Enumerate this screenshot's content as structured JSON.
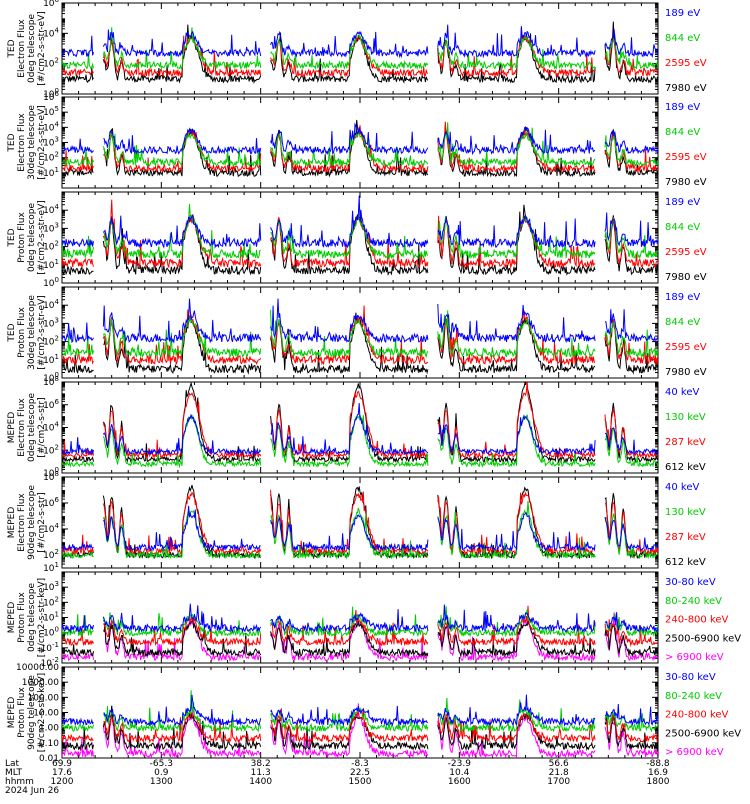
{
  "chart_data": [
    {
      "type": "line",
      "log_y": true,
      "ylim": [
        1,
        1000000
      ],
      "ylabel_lines": [
        "TED",
        "Electron Flux",
        "0deg telescope",
        "[#/cm2-s-str-eV]"
      ],
      "y_ticks": [
        {
          "exp": 0
        },
        {
          "exp": 2
        },
        {
          "exp": 4
        },
        {
          "exp": 6
        }
      ],
      "series": [
        {
          "name": "7980 eV",
          "color": "#000000",
          "baseline": 1.0
        },
        {
          "name": "2595 eV",
          "color": "#ff0000",
          "baseline": 1.4
        },
        {
          "name": "844 eV",
          "color": "#00cc00",
          "baseline": 1.9
        },
        {
          "name": "189 eV",
          "color": "#0000ff",
          "baseline": 2.7
        }
      ],
      "peaks": [
        1.3,
        2.7,
        2.6,
        0.6
      ]
    },
    {
      "type": "line",
      "log_y": true,
      "ylim": [
        1,
        1000000
      ],
      "ylabel_lines": [
        "TED",
        "Electron Flux",
        "30deg telescope",
        "[#/cm2-s-str-eV]"
      ],
      "y_ticks": [
        {
          "exp": 1
        },
        {
          "exp": 2
        },
        {
          "exp": 3
        },
        {
          "exp": 4
        },
        {
          "exp": 5
        },
        {
          "exp": 6
        }
      ],
      "series": [
        {
          "name": "7980 eV",
          "color": "#000000",
          "baseline": 1.0
        },
        {
          "name": "2595 eV",
          "color": "#ff0000",
          "baseline": 1.3
        },
        {
          "name": "844 eV",
          "color": "#00cc00",
          "baseline": 1.7
        },
        {
          "name": "189 eV",
          "color": "#0000ff",
          "baseline": 2.5
        }
      ],
      "peaks": [
        1.4,
        2.8,
        2.7,
        0.8
      ]
    },
    {
      "type": "line",
      "log_y": true,
      "ylim": [
        1,
        100000
      ],
      "ylabel_lines": [
        "TED",
        "Proton Flux",
        "0deg telescope",
        "[#/cm2-s-str-eV]"
      ],
      "y_ticks": [
        {
          "exp": 0
        },
        {
          "exp": 1
        },
        {
          "exp": 2
        },
        {
          "exp": 3
        },
        {
          "exp": 4
        }
      ],
      "series": [
        {
          "name": "7980 eV",
          "color": "#000000",
          "baseline": 0.7
        },
        {
          "name": "2595 eV",
          "color": "#ff0000",
          "baseline": 1.1
        },
        {
          "name": "844 eV",
          "color": "#00cc00",
          "baseline": 1.6
        },
        {
          "name": "189 eV",
          "color": "#0000ff",
          "baseline": 2.2
        }
      ],
      "peaks": [
        1.6,
        2.9,
        2.8,
        0.8
      ]
    },
    {
      "type": "line",
      "log_y": true,
      "ylim": [
        1,
        100000
      ],
      "ylabel_lines": [
        "TED",
        "Proton Flux",
        "30deg telescope",
        "[#/cm2-s-str-eV]"
      ],
      "y_ticks": [
        {
          "exp": 0
        },
        {
          "exp": 1
        },
        {
          "exp": 2
        },
        {
          "exp": 3
        },
        {
          "exp": 4
        }
      ],
      "series": [
        {
          "name": "7980 eV",
          "color": "#000000",
          "baseline": 0.5
        },
        {
          "name": "2595 eV",
          "color": "#ff0000",
          "baseline": 1.0
        },
        {
          "name": "844 eV",
          "color": "#00cc00",
          "baseline": 1.4
        },
        {
          "name": "189 eV",
          "color": "#0000ff",
          "baseline": 2.2
        }
      ],
      "peaks": [
        1.5,
        2.7,
        2.6,
        0.7
      ]
    },
    {
      "type": "line",
      "log_y": true,
      "ylim": [
        1,
        100000000
      ],
      "ylabel_lines": [
        "MEPED",
        "Electron Flux",
        "0deg telescope",
        "[#/cm2-s-str]"
      ],
      "y_ticks": [
        {
          "exp": 0
        },
        {
          "exp": 2
        },
        {
          "exp": 4
        },
        {
          "exp": 6
        },
        {
          "exp": 8
        }
      ],
      "series": [
        {
          "name": "612 keV",
          "color": "#000000",
          "baseline": 1.2
        },
        {
          "name": "287 keV",
          "color": "#ff0000",
          "baseline": 1.6
        },
        {
          "name": "130 keV",
          "color": "#00cc00",
          "baseline": 0.8
        },
        {
          "name": "40 keV",
          "color": "#0000ff",
          "baseline": 1.9
        }
      ],
      "peaks": [
        3.5,
        6.5,
        4.8,
        0.5
      ]
    },
    {
      "type": "line",
      "log_y": true,
      "ylim": [
        10,
        100000000
      ],
      "ylabel_lines": [
        "MEPED",
        "Electron Flux",
        "90deg telescope",
        "[#/cm2-s-str]"
      ],
      "y_ticks": [
        {
          "exp": 1
        },
        {
          "exp": 2
        },
        {
          "exp": 4
        },
        {
          "exp": 6
        },
        {
          "exp": 8
        }
      ],
      "series": [
        {
          "name": "612 keV",
          "color": "#000000",
          "baseline": 2.0
        },
        {
          "name": "287 keV",
          "color": "#ff0000",
          "baseline": 2.3
        },
        {
          "name": "130 keV",
          "color": "#00cc00",
          "baseline": 2.0
        },
        {
          "name": "40 keV",
          "color": "#0000ff",
          "baseline": 2.6
        }
      ],
      "peaks": [
        4.5,
        5.2,
        4.6,
        1.2
      ]
    },
    {
      "type": "line",
      "log_y": true,
      "ylim": [
        0.01,
        10000
      ],
      "ylabel_lines": [
        "MEPED",
        "Proton Flux",
        "0deg telescope",
        "[#/cm2-s-str-keV]"
      ],
      "y_ticks": [
        {
          "exp": -2
        },
        {
          "exp": -1
        },
        {
          "exp": 0
        },
        {
          "exp": 1
        },
        {
          "exp": 2
        },
        {
          "exp": 3
        }
      ],
      "series": [
        {
          "name": "> 6900 keV",
          "color": "#ff00ff",
          "baseline": -1.6
        },
        {
          "name": "2500-6900 keV",
          "color": "#000000",
          "baseline": -1.3
        },
        {
          "name": "240-800 keV",
          "color": "#ff0000",
          "baseline": -0.6
        },
        {
          "name": "80-240 keV",
          "color": "#00cc00",
          "baseline": 0.0
        },
        {
          "name": "30-80 keV",
          "color": "#0000ff",
          "baseline": 0.3
        }
      ],
      "peaks": [
        1.6,
        2.3,
        2.1,
        0.4
      ]
    },
    {
      "type": "line",
      "log_y": true,
      "ylim": [
        0.01,
        10000
      ],
      "ylabel_lines": [
        "MEPED",
        "Proton Flux",
        "90deg telescope",
        "[#/cm2-s-str-keV]"
      ],
      "y_tick_labels": [
        "0.01",
        "0.10",
        "1.00",
        "10.00",
        "100.00",
        "1000.00",
        "10000.00"
      ],
      "y_ticks": [
        {
          "exp": -2
        },
        {
          "exp": -1
        },
        {
          "exp": 0
        },
        {
          "exp": 1
        },
        {
          "exp": 2
        },
        {
          "exp": 3
        },
        {
          "exp": 4
        }
      ],
      "series": [
        {
          "name": "> 6900 keV",
          "color": "#ff00ff",
          "baseline": -1.7
        },
        {
          "name": "2500-6900 keV",
          "color": "#000000",
          "baseline": -1.2
        },
        {
          "name": "240-800 keV",
          "color": "#ff0000",
          "baseline": -0.7
        },
        {
          "name": "80-240 keV",
          "color": "#00cc00",
          "baseline": 0.0
        },
        {
          "name": "30-80 keV",
          "color": "#0000ff",
          "baseline": 0.4
        }
      ],
      "peaks": [
        1.7,
        2.4,
        2.2,
        0.5
      ]
    }
  ],
  "orbit": {
    "pass_centers_hhmm": [
      "1222",
      "1403",
      "1544",
      "1725"
    ],
    "pass_half_width_min": 7,
    "start_min": 720,
    "end_min": 1080
  },
  "x_axis": {
    "row_labels": [
      "Lat",
      "MLT",
      "hhmm"
    ],
    "lat": [
      "69.9",
      "-65.3",
      "38.2",
      "-8.3",
      "-23.9",
      "56.6",
      "-88.8"
    ],
    "mlt": [
      "17.6",
      "0.9",
      "11.3",
      "22.5",
      "10.4",
      "21.8",
      "16.9"
    ],
    "hhmm": [
      "1200",
      "1300",
      "1400",
      "1500",
      "1600",
      "1700",
      "1800"
    ],
    "date": "2024 Jun 26"
  }
}
